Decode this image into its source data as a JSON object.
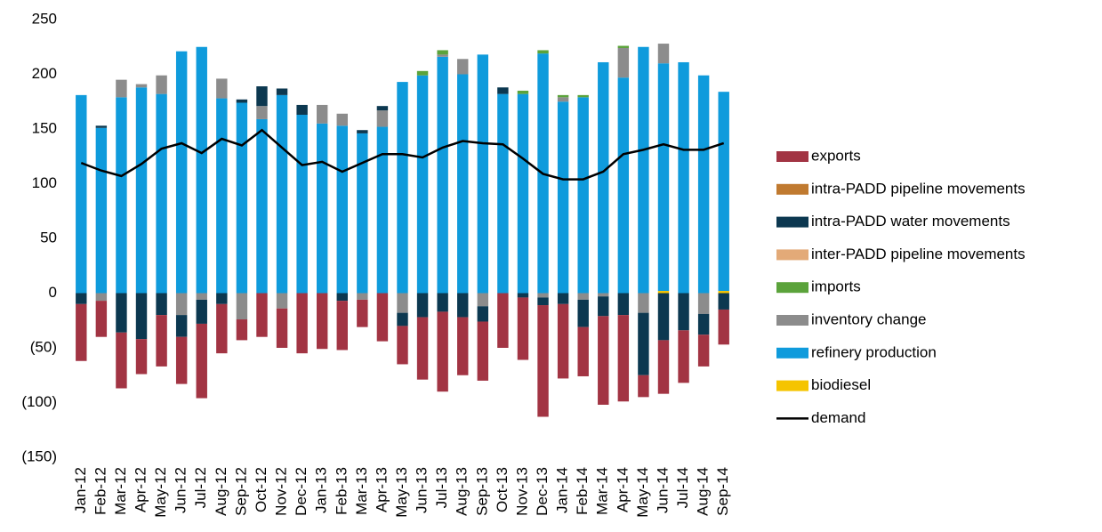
{
  "chart_data": {
    "type": "bar",
    "categories": [
      "Jan-12",
      "Feb-12",
      "Mar-12",
      "Apr-12",
      "May-12",
      "Jun-12",
      "Jul-12",
      "Aug-12",
      "Sep-12",
      "Oct-12",
      "Nov-12",
      "Dec-12",
      "Jan-13",
      "Feb-13",
      "Mar-13",
      "Apr-13",
      "May-13",
      "Jun-13",
      "Jul-13",
      "Aug-13",
      "Sep-13",
      "Oct-13",
      "Nov-13",
      "Dec-13",
      "Jan-14",
      "Feb-14",
      "Mar-14",
      "Apr-14",
      "May-14",
      "Jun-14",
      "Jul-14",
      "Aug-14",
      "Sep-14"
    ],
    "series": [
      {
        "name": "exports",
        "color": "#a23443",
        "values": [
          -52,
          -33,
          -51,
          -32,
          -47,
          -43,
          -68,
          -45,
          -19,
          -40,
          -36,
          -55,
          -51,
          -45,
          -25,
          -44,
          -35,
          -57,
          -73,
          -53,
          -54,
          -50,
          -57,
          -102,
          -68,
          -45,
          -81,
          -79,
          -20,
          -49,
          -48,
          -29,
          -32
        ]
      },
      {
        "name": "intra-PADD pipeline movements",
        "color": "#c07a30",
        "values": [
          0,
          0,
          0,
          0,
          0,
          0,
          0,
          0,
          0,
          0,
          0,
          0,
          0,
          0,
          0,
          0,
          0,
          0,
          0,
          0,
          0,
          0,
          0,
          0,
          0,
          0,
          0,
          0,
          0,
          0,
          0,
          0,
          0
        ]
      },
      {
        "name": "intra-PADD water movements",
        "color": "#0c3850",
        "values": [
          -10,
          2,
          -36,
          -42,
          -20,
          -20,
          -22,
          -10,
          3,
          18,
          6,
          9,
          0,
          -7,
          3,
          4,
          -12,
          -22,
          -17,
          -22,
          -14,
          6,
          -4,
          -7,
          -10,
          -25,
          -18,
          -20,
          -57,
          -43,
          -34,
          -19,
          -15
        ]
      },
      {
        "name": "inter-PADD pipeline movements",
        "color": "#e3aa78",
        "values": [
          0,
          0,
          0,
          0,
          0,
          0,
          0,
          0,
          0,
          0,
          0,
          0,
          0,
          0,
          0,
          0,
          0,
          0,
          0,
          0,
          0,
          0,
          0,
          0,
          0,
          0,
          0,
          0,
          0,
          0,
          0,
          0,
          0
        ]
      },
      {
        "name": "imports",
        "color": "#5ba33b",
        "values": [
          0,
          0,
          0,
          0,
          0,
          0,
          0,
          0,
          0,
          0,
          0,
          0,
          0,
          0,
          0,
          0,
          0,
          4,
          4,
          0,
          0,
          0,
          3,
          3,
          2,
          2,
          0,
          2,
          0,
          0,
          0,
          0,
          0
        ]
      },
      {
        "name": "inventory change",
        "color": "#8c8c8c",
        "values": [
          0,
          -7,
          16,
          3,
          17,
          -20,
          -6,
          18,
          -24,
          12,
          -14,
          0,
          17,
          11,
          -6,
          15,
          -18,
          0,
          2,
          14,
          -12,
          0,
          0,
          -4,
          4,
          -6,
          -3,
          27,
          -18,
          18,
          0,
          -19,
          0
        ]
      },
      {
        "name": "refinery production",
        "color": "#0f9bdc",
        "values": [
          181,
          151,
          179,
          188,
          182,
          221,
          225,
          178,
          174,
          159,
          181,
          163,
          155,
          153,
          146,
          152,
          193,
          199,
          216,
          200,
          218,
          182,
          182,
          219,
          175,
          179,
          211,
          197,
          225,
          208,
          211,
          199,
          182
        ]
      },
      {
        "name": "biodiesel",
        "color": "#f5c400",
        "values": [
          0,
          0,
          0,
          0,
          0,
          0,
          0,
          0,
          0,
          0,
          0,
          0,
          0,
          0,
          0,
          0,
          0,
          0,
          0,
          0,
          0,
          0,
          0,
          0,
          0,
          0,
          0,
          0,
          0,
          2,
          0,
          0,
          2
        ]
      },
      {
        "name": "demand",
        "color": "#000000",
        "type": "line",
        "values": [
          119,
          112,
          107,
          118,
          132,
          137,
          128,
          141,
          135,
          149,
          133,
          117,
          120,
          111,
          119,
          127,
          127,
          124,
          133,
          139,
          137,
          136,
          123,
          109,
          104,
          104,
          111,
          127,
          131,
          136,
          131,
          131,
          137
        ]
      }
    ],
    "ylim": [
      -150,
      250
    ],
    "yticks": [
      {
        "value": -150,
        "label": "(150)"
      },
      {
        "value": -100,
        "label": "(100)"
      },
      {
        "value": -50,
        "label": "(50)"
      },
      0,
      50,
      100,
      150,
      200,
      250
    ],
    "grid": false,
    "legend": "right"
  }
}
